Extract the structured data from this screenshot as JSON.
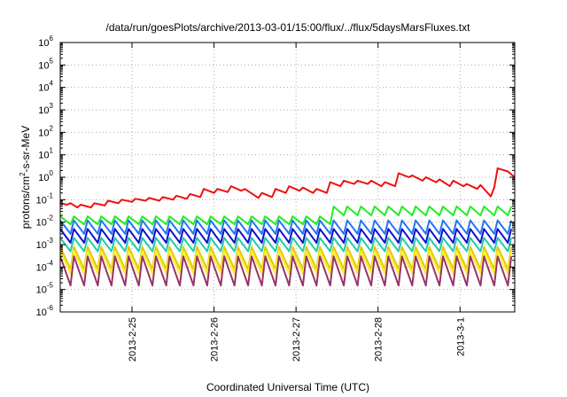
{
  "chart_data": {
    "type": "line",
    "title": "/data/run/goesPlots/archive/2013-03-01/15:00/flux/../flux/5daysMarsFluxes.txt",
    "xlabel": "Coordinated Universal Time (UTC)",
    "ylabel": {
      "prefix": "protons/cm",
      "sup": "2",
      "suffix": "-s-sr-MeV"
    },
    "x_range": [
      "2013-02-24T03:00",
      "2013-03-01T16:00"
    ],
    "x_ticks": [
      {
        "label": "2013-2-25",
        "date": "2013-02-25"
      },
      {
        "label": "2013-2-26",
        "date": "2013-02-26"
      },
      {
        "label": "2013-2-27",
        "date": "2013-02-27"
      },
      {
        "label": "2013-2-28",
        "date": "2013-02-28"
      },
      {
        "label": "2013-3-1",
        "date": "2013-03-01"
      }
    ],
    "y_scale": "log",
    "ylim": [
      1e-06,
      1000000.0
    ],
    "y_ticks": [
      {
        "base": "10",
        "exp": "6",
        "value": 1000000.0
      },
      {
        "base": "10",
        "exp": "5",
        "value": 100000.0
      },
      {
        "base": "10",
        "exp": "4",
        "value": 10000.0
      },
      {
        "base": "10",
        "exp": "3",
        "value": 1000.0
      },
      {
        "base": "10",
        "exp": "2",
        "value": 100.0
      },
      {
        "base": "10",
        "exp": "1",
        "value": 10.0
      },
      {
        "base": "10",
        "exp": "0",
        "value": 1
      },
      {
        "base": "10",
        "exp": "-1",
        "value": 0.1
      },
      {
        "base": "10",
        "exp": "-2",
        "value": 0.01
      },
      {
        "base": "10",
        "exp": "-3",
        "value": 0.001
      },
      {
        "base": "10",
        "exp": "-4",
        "value": 0.0001
      },
      {
        "base": "10",
        "exp": "-5",
        "value": 1e-05
      },
      {
        "base": "10",
        "exp": "-6",
        "value": 1e-06
      }
    ],
    "grid": true,
    "legend": "none",
    "series": [
      {
        "color": "#ee1111",
        "points": [
          [
            "2013-02-24T03:00",
            0.07
          ],
          [
            "2013-02-24T05:00",
            0.06
          ],
          [
            "2013-02-24T06:00",
            0.07
          ],
          [
            "2013-02-24T08:00",
            0.045
          ],
          [
            "2013-02-24T09:00",
            0.06
          ],
          [
            "2013-02-24T12:00",
            0.045
          ],
          [
            "2013-02-24T13:00",
            0.07
          ],
          [
            "2013-02-24T16:00",
            0.055
          ],
          [
            "2013-02-24T17:00",
            0.09
          ],
          [
            "2013-02-24T20:00",
            0.07
          ],
          [
            "2013-02-24T21:00",
            0.1
          ],
          [
            "2013-02-25T00:00",
            0.08
          ],
          [
            "2013-02-25T01:00",
            0.11
          ],
          [
            "2013-02-25T04:00",
            0.09
          ],
          [
            "2013-02-25T05:00",
            0.12
          ],
          [
            "2013-02-25T08:00",
            0.09
          ],
          [
            "2013-02-25T09:00",
            0.13
          ],
          [
            "2013-02-25T12:00",
            0.1
          ],
          [
            "2013-02-25T13:00",
            0.15
          ],
          [
            "2013-02-25T16:00",
            0.11
          ],
          [
            "2013-02-25T17:00",
            0.18
          ],
          [
            "2013-02-25T20:00",
            0.13
          ],
          [
            "2013-02-25T21:00",
            0.3
          ],
          [
            "2013-02-26T00:00",
            0.2
          ],
          [
            "2013-02-26T01:00",
            0.3
          ],
          [
            "2013-02-26T04:00",
            0.22
          ],
          [
            "2013-02-26T05:00",
            0.4
          ],
          [
            "2013-02-26T08:00",
            0.25
          ],
          [
            "2013-02-26T09:00",
            0.3
          ],
          [
            "2013-02-26T13:00",
            0.12
          ],
          [
            "2013-02-26T14:00",
            0.2
          ],
          [
            "2013-02-26T17:00",
            0.13
          ],
          [
            "2013-02-26T18:00",
            0.3
          ],
          [
            "2013-02-26T21:00",
            0.2
          ],
          [
            "2013-02-26T22:00",
            0.4
          ],
          [
            "2013-02-27T01:00",
            0.25
          ],
          [
            "2013-02-27T02:00",
            0.35
          ],
          [
            "2013-02-27T05:00",
            0.2
          ],
          [
            "2013-02-27T06:00",
            0.3
          ],
          [
            "2013-02-27T09:00",
            0.2
          ],
          [
            "2013-02-27T10:00",
            0.6
          ],
          [
            "2013-02-27T13:00",
            0.4
          ],
          [
            "2013-02-27T14:00",
            0.7
          ],
          [
            "2013-02-27T17:00",
            0.5
          ],
          [
            "2013-02-27T18:00",
            0.7
          ],
          [
            "2013-02-27T21:00",
            0.5
          ],
          [
            "2013-02-27T22:00",
            0.7
          ],
          [
            "2013-02-28T01:00",
            0.4
          ],
          [
            "2013-02-28T02:00",
            0.6
          ],
          [
            "2013-02-28T05:00",
            0.4
          ],
          [
            "2013-02-28T06:00",
            1.5
          ],
          [
            "2013-02-28T09:00",
            1.0
          ],
          [
            "2013-02-28T10:00",
            1.2
          ],
          [
            "2013-02-28T13:00",
            0.7
          ],
          [
            "2013-02-28T14:00",
            1.0
          ],
          [
            "2013-02-28T17:00",
            0.6
          ],
          [
            "2013-02-28T18:00",
            0.8
          ],
          [
            "2013-02-28T21:00",
            0.4
          ],
          [
            "2013-02-28T22:00",
            0.7
          ],
          [
            "2013-03-01T01:00",
            0.4
          ],
          [
            "2013-03-01T02:00",
            0.5
          ],
          [
            "2013-03-01T05:00",
            0.3
          ],
          [
            "2013-03-01T06:00",
            0.45
          ],
          [
            "2013-03-01T09:00",
            0.14
          ],
          [
            "2013-03-01T10:00",
            0.35
          ],
          [
            "2013-03-01T11:00",
            2.5
          ],
          [
            "2013-03-01T14:00",
            1.8
          ],
          [
            "2013-03-01T16:00",
            1.0
          ]
        ]
      },
      {
        "color": "#22ee22",
        "shape": "sawtooth",
        "start": "2013-02-24T03:00",
        "period_hours": 4,
        "count": 34,
        "base_peak": 0.018,
        "base_trough": 0.008,
        "shift_after": "2013-02-27T09:00",
        "shifted_peak": 0.05,
        "shifted_trough": 0.02
      },
      {
        "color": "#2277ee",
        "shape": "sawtooth",
        "start": "2013-02-24T03:00",
        "period_hours": 4,
        "count": 34,
        "base_peak": 0.012,
        "base_trough": 0.003
      },
      {
        "color": "#1111cc",
        "shape": "sawtooth",
        "start": "2013-02-24T03:00",
        "period_hours": 4,
        "count": 34,
        "base_peak": 0.005,
        "base_trough": 0.0012
      },
      {
        "color": "#22ccaa",
        "shape": "sawtooth",
        "start": "2013-02-24T03:00",
        "period_hours": 4,
        "count": 34,
        "base_peak": 0.002,
        "base_trough": 0.0005
      },
      {
        "color": "#ddcc00",
        "shape": "sawtooth",
        "start": "2013-02-24T03:00",
        "period_hours": 4,
        "count": 34,
        "base_peak": 0.0008,
        "base_trough": 8e-05
      },
      {
        "color": "#ffee33",
        "shape": "sawtooth",
        "start": "2013-02-24T03:00",
        "period_hours": 4,
        "count": 34,
        "base_peak": 0.0005,
        "base_trough": 5e-05
      },
      {
        "color": "#993366",
        "shape": "sawtooth",
        "start": "2013-02-24T03:00",
        "period_hours": 4,
        "count": 34,
        "base_peak": 0.0003,
        "base_trough": 1.5e-05
      }
    ]
  }
}
